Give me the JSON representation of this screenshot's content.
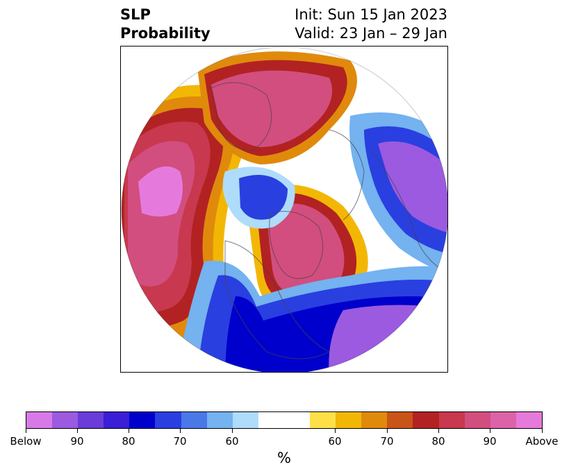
{
  "title": {
    "left_line1": "SLP",
    "left_line2": "Probability",
    "right_line1": "Init: Sun 15 Jan 2023",
    "right_line2": "Valid: 23 Jan – 29 Jan"
  },
  "map": {
    "projection": "north-polar-stereographic",
    "content": "sea-level-pressure-probability-shading"
  },
  "colorbar": {
    "segments": [
      "#d77ae8",
      "#9b5ae0",
      "#6a3cd8",
      "#3a1fd6",
      "#0000cc",
      "#2a3fe0",
      "#4a78e8",
      "#74b2f0",
      "#aedcfa",
      "#ffffff",
      "#fde047",
      "#f2b705",
      "#e08a0c",
      "#c95418",
      "#b22222",
      "#c8384e",
      "#d24e7f",
      "#dd62a8",
      "#e67adc"
    ],
    "tick_labels": [
      "Below",
      "90",
      "80",
      "70",
      "60",
      "60",
      "70",
      "80",
      "90",
      "Above"
    ],
    "units": "%"
  }
}
